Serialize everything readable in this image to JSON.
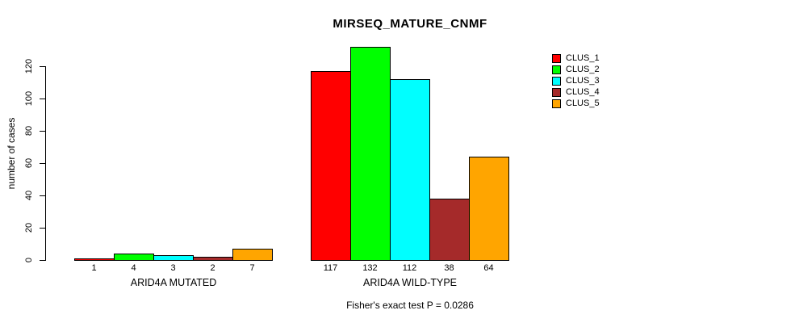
{
  "chart_data": {
    "type": "bar",
    "title": "MIRSEQ_MATURE_CNMF",
    "ylabel": "number of cases",
    "xlabel": "",
    "ylim": [
      0,
      132
    ],
    "yticks": [
      0,
      20,
      40,
      60,
      80,
      100,
      120
    ],
    "grid": false,
    "legend_position": "top-right",
    "legend": [
      {
        "label": "CLUS_1",
        "color": "#FF0000"
      },
      {
        "label": "CLUS_2",
        "color": "#00FF00"
      },
      {
        "label": "CLUS_3",
        "color": "#00FFFF"
      },
      {
        "label": "CLUS_4",
        "color": "#A52A2A"
      },
      {
        "label": "CLUS_5",
        "color": "#FFA500"
      }
    ],
    "groups": [
      {
        "label": "ARID4A MUTATED",
        "values": [
          1,
          4,
          3,
          2,
          7
        ]
      },
      {
        "label": "ARID4A WILD-TYPE",
        "values": [
          117,
          132,
          112,
          38,
          64
        ]
      }
    ],
    "bar_value_labels": true,
    "annotation": "Fisher's exact test P = 0.0286"
  }
}
